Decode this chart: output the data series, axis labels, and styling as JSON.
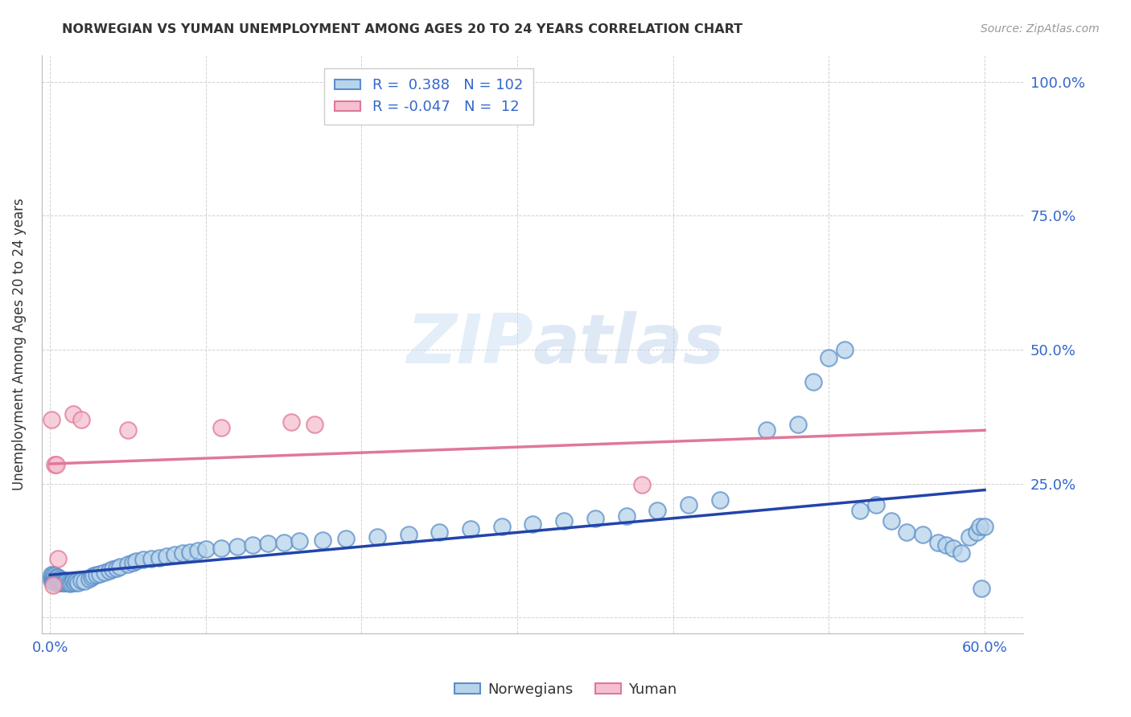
{
  "title": "NORWEGIAN VS YUMAN UNEMPLOYMENT AMONG AGES 20 TO 24 YEARS CORRELATION CHART",
  "source": "Source: ZipAtlas.com",
  "ylabel": "Unemployment Among Ages 20 to 24 years",
  "xlim_min": -0.005,
  "xlim_max": 0.625,
  "ylim_min": -0.03,
  "ylim_max": 1.05,
  "norwegian_R": 0.388,
  "norwegian_N": 102,
  "yuman_R": -0.047,
  "yuman_N": 12,
  "norwegian_face_color": "#b8d4ea",
  "norwegian_edge_color": "#5b8fc9",
  "yuman_face_color": "#f5c0d0",
  "yuman_edge_color": "#e07898",
  "trend_norwegian_color": "#2244aa",
  "trend_yuman_color": "#e07898",
  "background_color": "#ffffff",
  "norwegian_x": [
    0.001,
    0.001,
    0.001,
    0.002,
    0.002,
    0.002,
    0.002,
    0.003,
    0.003,
    0.003,
    0.003,
    0.003,
    0.004,
    0.004,
    0.004,
    0.005,
    0.005,
    0.005,
    0.005,
    0.006,
    0.006,
    0.006,
    0.007,
    0.007,
    0.007,
    0.008,
    0.008,
    0.009,
    0.009,
    0.01,
    0.01,
    0.011,
    0.012,
    0.013,
    0.014,
    0.015,
    0.016,
    0.017,
    0.018,
    0.02,
    0.022,
    0.025,
    0.027,
    0.028,
    0.03,
    0.032,
    0.035,
    0.038,
    0.04,
    0.043,
    0.045,
    0.05,
    0.053,
    0.055,
    0.06,
    0.065,
    0.07,
    0.075,
    0.08,
    0.085,
    0.09,
    0.095,
    0.1,
    0.11,
    0.12,
    0.13,
    0.14,
    0.15,
    0.16,
    0.175,
    0.19,
    0.21,
    0.23,
    0.25,
    0.27,
    0.29,
    0.31,
    0.33,
    0.35,
    0.37,
    0.39,
    0.41,
    0.43,
    0.46,
    0.48,
    0.49,
    0.5,
    0.51,
    0.52,
    0.53,
    0.54,
    0.55,
    0.56,
    0.57,
    0.575,
    0.58,
    0.585,
    0.59,
    0.595,
    0.597,
    0.598,
    0.6
  ],
  "norwegian_y": [
    0.07,
    0.075,
    0.08,
    0.068,
    0.072,
    0.075,
    0.08,
    0.07,
    0.072,
    0.075,
    0.078,
    0.065,
    0.068,
    0.072,
    0.075,
    0.065,
    0.068,
    0.07,
    0.075,
    0.068,
    0.07,
    0.072,
    0.065,
    0.068,
    0.07,
    0.065,
    0.068,
    0.065,
    0.068,
    0.07,
    0.065,
    0.068,
    0.065,
    0.063,
    0.065,
    0.068,
    0.065,
    0.068,
    0.065,
    0.07,
    0.068,
    0.072,
    0.075,
    0.078,
    0.08,
    0.082,
    0.085,
    0.088,
    0.09,
    0.092,
    0.095,
    0.1,
    0.102,
    0.105,
    0.108,
    0.11,
    0.112,
    0.115,
    0.118,
    0.12,
    0.122,
    0.125,
    0.128,
    0.13,
    0.133,
    0.135,
    0.138,
    0.14,
    0.143,
    0.145,
    0.148,
    0.15,
    0.155,
    0.16,
    0.165,
    0.17,
    0.175,
    0.18,
    0.185,
    0.19,
    0.2,
    0.21,
    0.22,
    0.35,
    0.36,
    0.44,
    0.485,
    0.5,
    0.2,
    0.21,
    0.18,
    0.16,
    0.155,
    0.14,
    0.135,
    0.13,
    0.12,
    0.15,
    0.16,
    0.17,
    0.055,
    0.17
  ],
  "yuman_x": [
    0.001,
    0.002,
    0.003,
    0.004,
    0.005,
    0.015,
    0.02,
    0.05,
    0.11,
    0.155,
    0.17,
    0.38
  ],
  "yuman_y": [
    0.37,
    0.06,
    0.285,
    0.285,
    0.11,
    0.38,
    0.37,
    0.35,
    0.355,
    0.365,
    0.36,
    0.248
  ]
}
